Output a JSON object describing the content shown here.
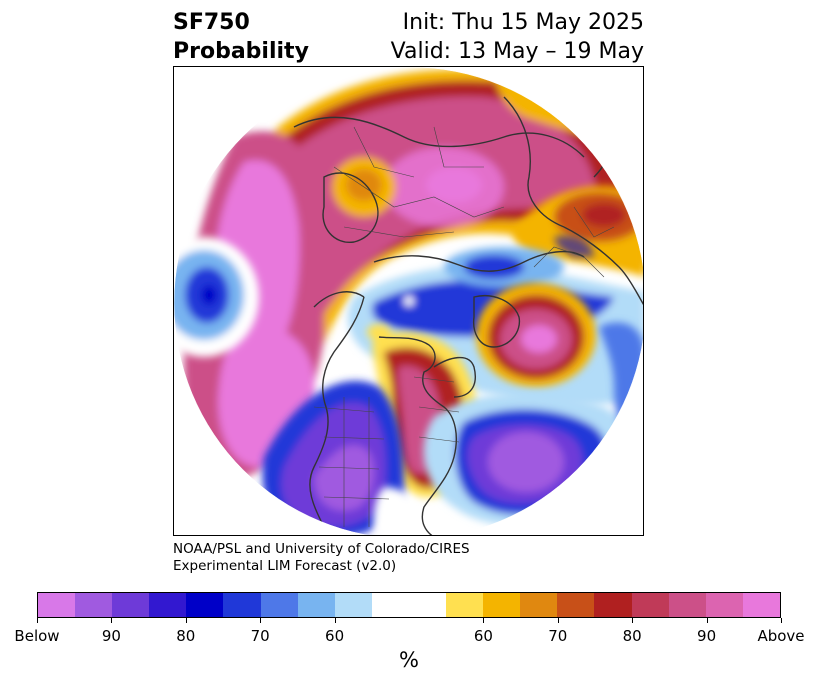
{
  "title": {
    "variable": "SF750",
    "subtitle": "Probability",
    "init": "Init: Thu 15 May 2025",
    "valid": "Valid: 13 May – 19 May"
  },
  "credit": {
    "line1": "NOAA/PSL and University of Colorado/CIRES",
    "line2": "Experimental LIM Forecast (v2.0)"
  },
  "colorbar": {
    "unit": "%",
    "colors": [
      "#d878e8",
      "#a05ae0",
      "#6e3ad8",
      "#3218d0",
      "#0000c8",
      "#2038d8",
      "#4e78e8",
      "#78b4f0",
      "#b2dcf8",
      "#ffffff",
      "#ffffff",
      "#ffe050",
      "#f4b400",
      "#e08810",
      "#c85018",
      "#b02020",
      "#c03a58",
      "#cc5088",
      "#dc64b0",
      "#e878dc"
    ],
    "labels": [
      "Below",
      "90",
      "80",
      "70",
      "60",
      "60",
      "70",
      "80",
      "90",
      "Above"
    ]
  },
  "map": {
    "legend_colors": {
      "strong_above": "#e878dc",
      "above": "#cc5088",
      "moderate_above": "#b02020",
      "weak_above": "#f4b400",
      "neutral": "#ffffff",
      "weak_below": "#b2dcf8",
      "moderate_below": "#4e78e8",
      "below": "#0000c8",
      "strong_below": "#a05ae0"
    }
  }
}
